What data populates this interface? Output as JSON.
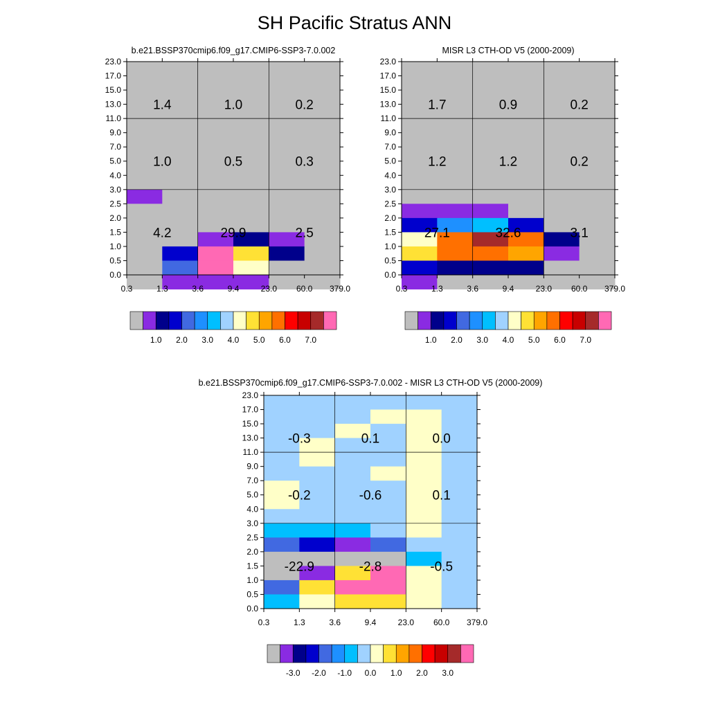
{
  "title": "SH Pacific Stratus ANN",
  "chart_data": [
    {
      "type": "heatmap",
      "title": "b.e21.BSSP370cmip6.f09_g17.CMIP6-SSP3-7.0.002",
      "x_ticks": [
        "0.3",
        "1.3",
        "3.6",
        "9.4",
        "23.0",
        "60.0",
        "379.0"
      ],
      "y_ticks": [
        "0.0",
        "0.5",
        "1.0",
        "1.5",
        "2.0",
        "2.5",
        "3.0",
        "4.0",
        "5.0",
        "7.0",
        "9.0",
        "11.0",
        "13.0",
        "15.0",
        "17.0",
        "23.0"
      ],
      "grid_values": [
        [
          0,
          0,
          0,
          0,
          0,
          0
        ],
        [
          0,
          0,
          0,
          0,
          0,
          0
        ],
        [
          0,
          0,
          0,
          0,
          0,
          0
        ],
        [
          0,
          0,
          0,
          0,
          0,
          0
        ],
        [
          0,
          0,
          0,
          0,
          0,
          0
        ],
        [
          0,
          0,
          0,
          0,
          0,
          0
        ],
        [
          0,
          0,
          0,
          0,
          0,
          0
        ],
        [
          0,
          0,
          0,
          0,
          0,
          0
        ],
        [
          0,
          0,
          0,
          0,
          0,
          0
        ],
        [
          0.3,
          0,
          0,
          0,
          0,
          0
        ],
        [
          0,
          0,
          0,
          0,
          0,
          0
        ],
        [
          0,
          0,
          0,
          0,
          0,
          0
        ],
        [
          0,
          0,
          0.3,
          0.6,
          0.3,
          0
        ],
        [
          0,
          1.2,
          10.5,
          4.4,
          0.6,
          0
        ],
        [
          0,
          1.6,
          10.5,
          3.8,
          0,
          0
        ],
        [
          0,
          0.3,
          0.3,
          0.3,
          0,
          0
        ]
      ],
      "region_labels": [
        {
          "x_idx": 1,
          "y_idx": 3,
          "text": "1.4"
        },
        {
          "x_idx": 3,
          "y_idx": 3,
          "text": "1.0"
        },
        {
          "x_idx": 5,
          "y_idx": 3,
          "text": "0.2"
        },
        {
          "x_idx": 1,
          "y_idx": 7,
          "text": "1.0"
        },
        {
          "x_idx": 3,
          "y_idx": 7,
          "text": "0.5"
        },
        {
          "x_idx": 5,
          "y_idx": 7,
          "text": "0.3"
        },
        {
          "x_idx": 1,
          "y_idx": 12,
          "text": "4.2"
        },
        {
          "x_idx": 3,
          "y_idx": 12,
          "text": "29.9"
        },
        {
          "x_idx": 5,
          "y_idx": 12,
          "text": "2.5"
        }
      ],
      "colorbar": {
        "colors": [
          "#BEBEBE",
          "#8A2BE2",
          "#00008B",
          "#0000CD",
          "#4169E1",
          "#1E90FF",
          "#00BFFF",
          "#A0D2FF",
          "#FFFFC8",
          "#FFE135",
          "#FFA500",
          "#FF7000",
          "#FF0000",
          "#C80000",
          "#A52A2A",
          "#FF69B4"
        ],
        "levels": [
          0.2,
          0.5,
          1.0,
          1.5,
          2.0,
          2.5,
          3.0,
          3.5,
          4.0,
          4.5,
          5.0,
          5.5,
          6.0,
          6.5,
          7.0
        ],
        "labels": [
          "1.0",
          "2.0",
          "3.0",
          "4.0",
          "5.0",
          "6.0",
          "7.0"
        ],
        "label_boundaries": [
          2,
          4,
          6,
          8,
          10,
          12,
          14
        ]
      }
    },
    {
      "type": "heatmap",
      "title": "MISR L3 CTH-OD V5 (2000-2009)",
      "x_ticks": [
        "0.3",
        "1.3",
        "3.6",
        "9.4",
        "23.0",
        "60.0",
        "379.0"
      ],
      "y_ticks": [
        "0.0",
        "0.5",
        "1.0",
        "1.5",
        "2.0",
        "2.5",
        "3.0",
        "4.0",
        "5.0",
        "7.0",
        "9.0",
        "11.0",
        "13.0",
        "15.0",
        "17.0",
        "23.0"
      ],
      "grid_values": [
        [
          0,
          0,
          0,
          0,
          0,
          0
        ],
        [
          0,
          0,
          0,
          0,
          0,
          0
        ],
        [
          0,
          0,
          0,
          0,
          0,
          0
        ],
        [
          0,
          0,
          0,
          0,
          0,
          0
        ],
        [
          0,
          0,
          0,
          0,
          0,
          0
        ],
        [
          0,
          0,
          0,
          0,
          0,
          0
        ],
        [
          0,
          0,
          0,
          0,
          0,
          0
        ],
        [
          0,
          0,
          0,
          0,
          0,
          0
        ],
        [
          0,
          0,
          0,
          0,
          0,
          0
        ],
        [
          0,
          0,
          0,
          0,
          0,
          0
        ],
        [
          0.3,
          0.3,
          0.3,
          0,
          0,
          0
        ],
        [
          1.2,
          2.2,
          2.7,
          1.2,
          0,
          0
        ],
        [
          3.8,
          5.3,
          6.8,
          5.2,
          0.8,
          0
        ],
        [
          4.2,
          5.3,
          5.3,
          4.7,
          0.3,
          0
        ],
        [
          1.2,
          0.8,
          0.8,
          0.8,
          0,
          0
        ],
        [
          0.3,
          0,
          0,
          0,
          0,
          0
        ]
      ],
      "region_labels": [
        {
          "x_idx": 1,
          "y_idx": 3,
          "text": "1.7"
        },
        {
          "x_idx": 3,
          "y_idx": 3,
          "text": "0.9"
        },
        {
          "x_idx": 5,
          "y_idx": 3,
          "text": "0.2"
        },
        {
          "x_idx": 1,
          "y_idx": 7,
          "text": "1.2"
        },
        {
          "x_idx": 3,
          "y_idx": 7,
          "text": "1.2"
        },
        {
          "x_idx": 5,
          "y_idx": 7,
          "text": "0.2"
        },
        {
          "x_idx": 1,
          "y_idx": 12,
          "text": "27.1"
        },
        {
          "x_idx": 3,
          "y_idx": 12,
          "text": "32.6"
        },
        {
          "x_idx": 5,
          "y_idx": 12,
          "text": "3.1"
        }
      ],
      "colorbar": {
        "colors": [
          "#BEBEBE",
          "#8A2BE2",
          "#00008B",
          "#0000CD",
          "#4169E1",
          "#1E90FF",
          "#00BFFF",
          "#A0D2FF",
          "#FFFFC8",
          "#FFE135",
          "#FFA500",
          "#FF7000",
          "#FF0000",
          "#C80000",
          "#A52A2A",
          "#FF69B4"
        ],
        "levels": [
          0.2,
          0.5,
          1.0,
          1.5,
          2.0,
          2.5,
          3.0,
          3.5,
          4.0,
          4.5,
          5.0,
          5.5,
          6.0,
          6.5,
          7.0
        ],
        "labels": [
          "1.0",
          "2.0",
          "3.0",
          "4.0",
          "5.0",
          "6.0",
          "7.0"
        ],
        "label_boundaries": [
          2,
          4,
          6,
          8,
          10,
          12,
          14
        ]
      }
    },
    {
      "type": "heatmap",
      "title": "b.e21.BSSP370cmip6.f09_g17.CMIP6-SSP3-7.0.002 - MISR L3 CTH-OD V5 (2000-2009)",
      "x_ticks": [
        "0.3",
        "1.3",
        "3.6",
        "9.4",
        "23.0",
        "60.0",
        "379.0"
      ],
      "y_ticks": [
        "0.0",
        "0.5",
        "1.0",
        "1.5",
        "2.0",
        "2.5",
        "3.0",
        "4.0",
        "5.0",
        "7.0",
        "9.0",
        "11.0",
        "13.0",
        "15.0",
        "17.0",
        "23.0"
      ],
      "grid_values": [
        [
          -0.2,
          -0.2,
          -0.2,
          -0.2,
          -0.2,
          -0.2
        ],
        [
          -0.2,
          -0.2,
          -0.2,
          0.2,
          0.2,
          -0.2
        ],
        [
          -0.2,
          -0.2,
          0.2,
          -0.2,
          0.2,
          -0.2
        ],
        [
          -0.2,
          0.2,
          -0.2,
          -0.2,
          0.2,
          -0.2
        ],
        [
          -0.2,
          0.2,
          -0.2,
          -0.2,
          0.2,
          -0.2
        ],
        [
          -0.2,
          -0.2,
          -0.2,
          0.2,
          0.2,
          -0.2
        ],
        [
          0.2,
          -0.2,
          -0.2,
          -0.2,
          0.2,
          -0.2
        ],
        [
          0.2,
          -0.2,
          -0.2,
          -0.2,
          0.2,
          -0.2
        ],
        [
          -0.2,
          -0.2,
          -0.2,
          -0.2,
          0.2,
          -0.2
        ],
        [
          -0.7,
          -0.7,
          -0.7,
          -0.2,
          0.2,
          -0.2
        ],
        [
          -1.8,
          -2.2,
          -3.2,
          -1.8,
          -0.2,
          -0.2
        ],
        [
          -4.0,
          -4.0,
          -4.0,
          -4.0,
          -0.7,
          -0.2
        ],
        [
          -4.0,
          -3.2,
          0.7,
          3.8,
          0.2,
          -0.2
        ],
        [
          -1.8,
          0.7,
          4.2,
          4.2,
          0.2,
          -0.2
        ],
        [
          -0.7,
          0.2,
          0.7,
          0.7,
          0.2,
          -0.2
        ]
      ],
      "region_labels": [
        {
          "x_idx": 1,
          "y_idx": 3,
          "text": "-0.3"
        },
        {
          "x_idx": 3,
          "y_idx": 3,
          "text": "0.1"
        },
        {
          "x_idx": 5,
          "y_idx": 3,
          "text": "0.0"
        },
        {
          "x_idx": 1,
          "y_idx": 7,
          "text": "-0.2"
        },
        {
          "x_idx": 3,
          "y_idx": 7,
          "text": "-0.6"
        },
        {
          "x_idx": 5,
          "y_idx": 7,
          "text": "0.1"
        },
        {
          "x_idx": 1,
          "y_idx": 12,
          "text": "-22.9"
        },
        {
          "x_idx": 3,
          "y_idx": 12,
          "text": "-2.8"
        },
        {
          "x_idx": 5,
          "y_idx": 12,
          "text": "-0.5"
        }
      ],
      "colorbar": {
        "colors": [
          "#BEBEBE",
          "#8A2BE2",
          "#00008B",
          "#0000CD",
          "#4169E1",
          "#1E90FF",
          "#00BFFF",
          "#A0D2FF",
          "#FFFFC8",
          "#FFE135",
          "#FFA500",
          "#FF7000",
          "#FF0000",
          "#C80000",
          "#A52A2A",
          "#FF69B4"
        ],
        "levels": [
          -3.5,
          -3.0,
          -2.5,
          -2.0,
          -1.5,
          -1.0,
          -0.5,
          0.0,
          0.5,
          1.0,
          1.5,
          2.0,
          2.5,
          3.0,
          3.5
        ],
        "labels": [
          "-3.0",
          "-2.0",
          "-1.0",
          "0.0",
          "1.0",
          "2.0",
          "3.0"
        ],
        "label_boundaries": [
          2,
          4,
          6,
          8,
          10,
          12,
          14
        ]
      }
    }
  ]
}
